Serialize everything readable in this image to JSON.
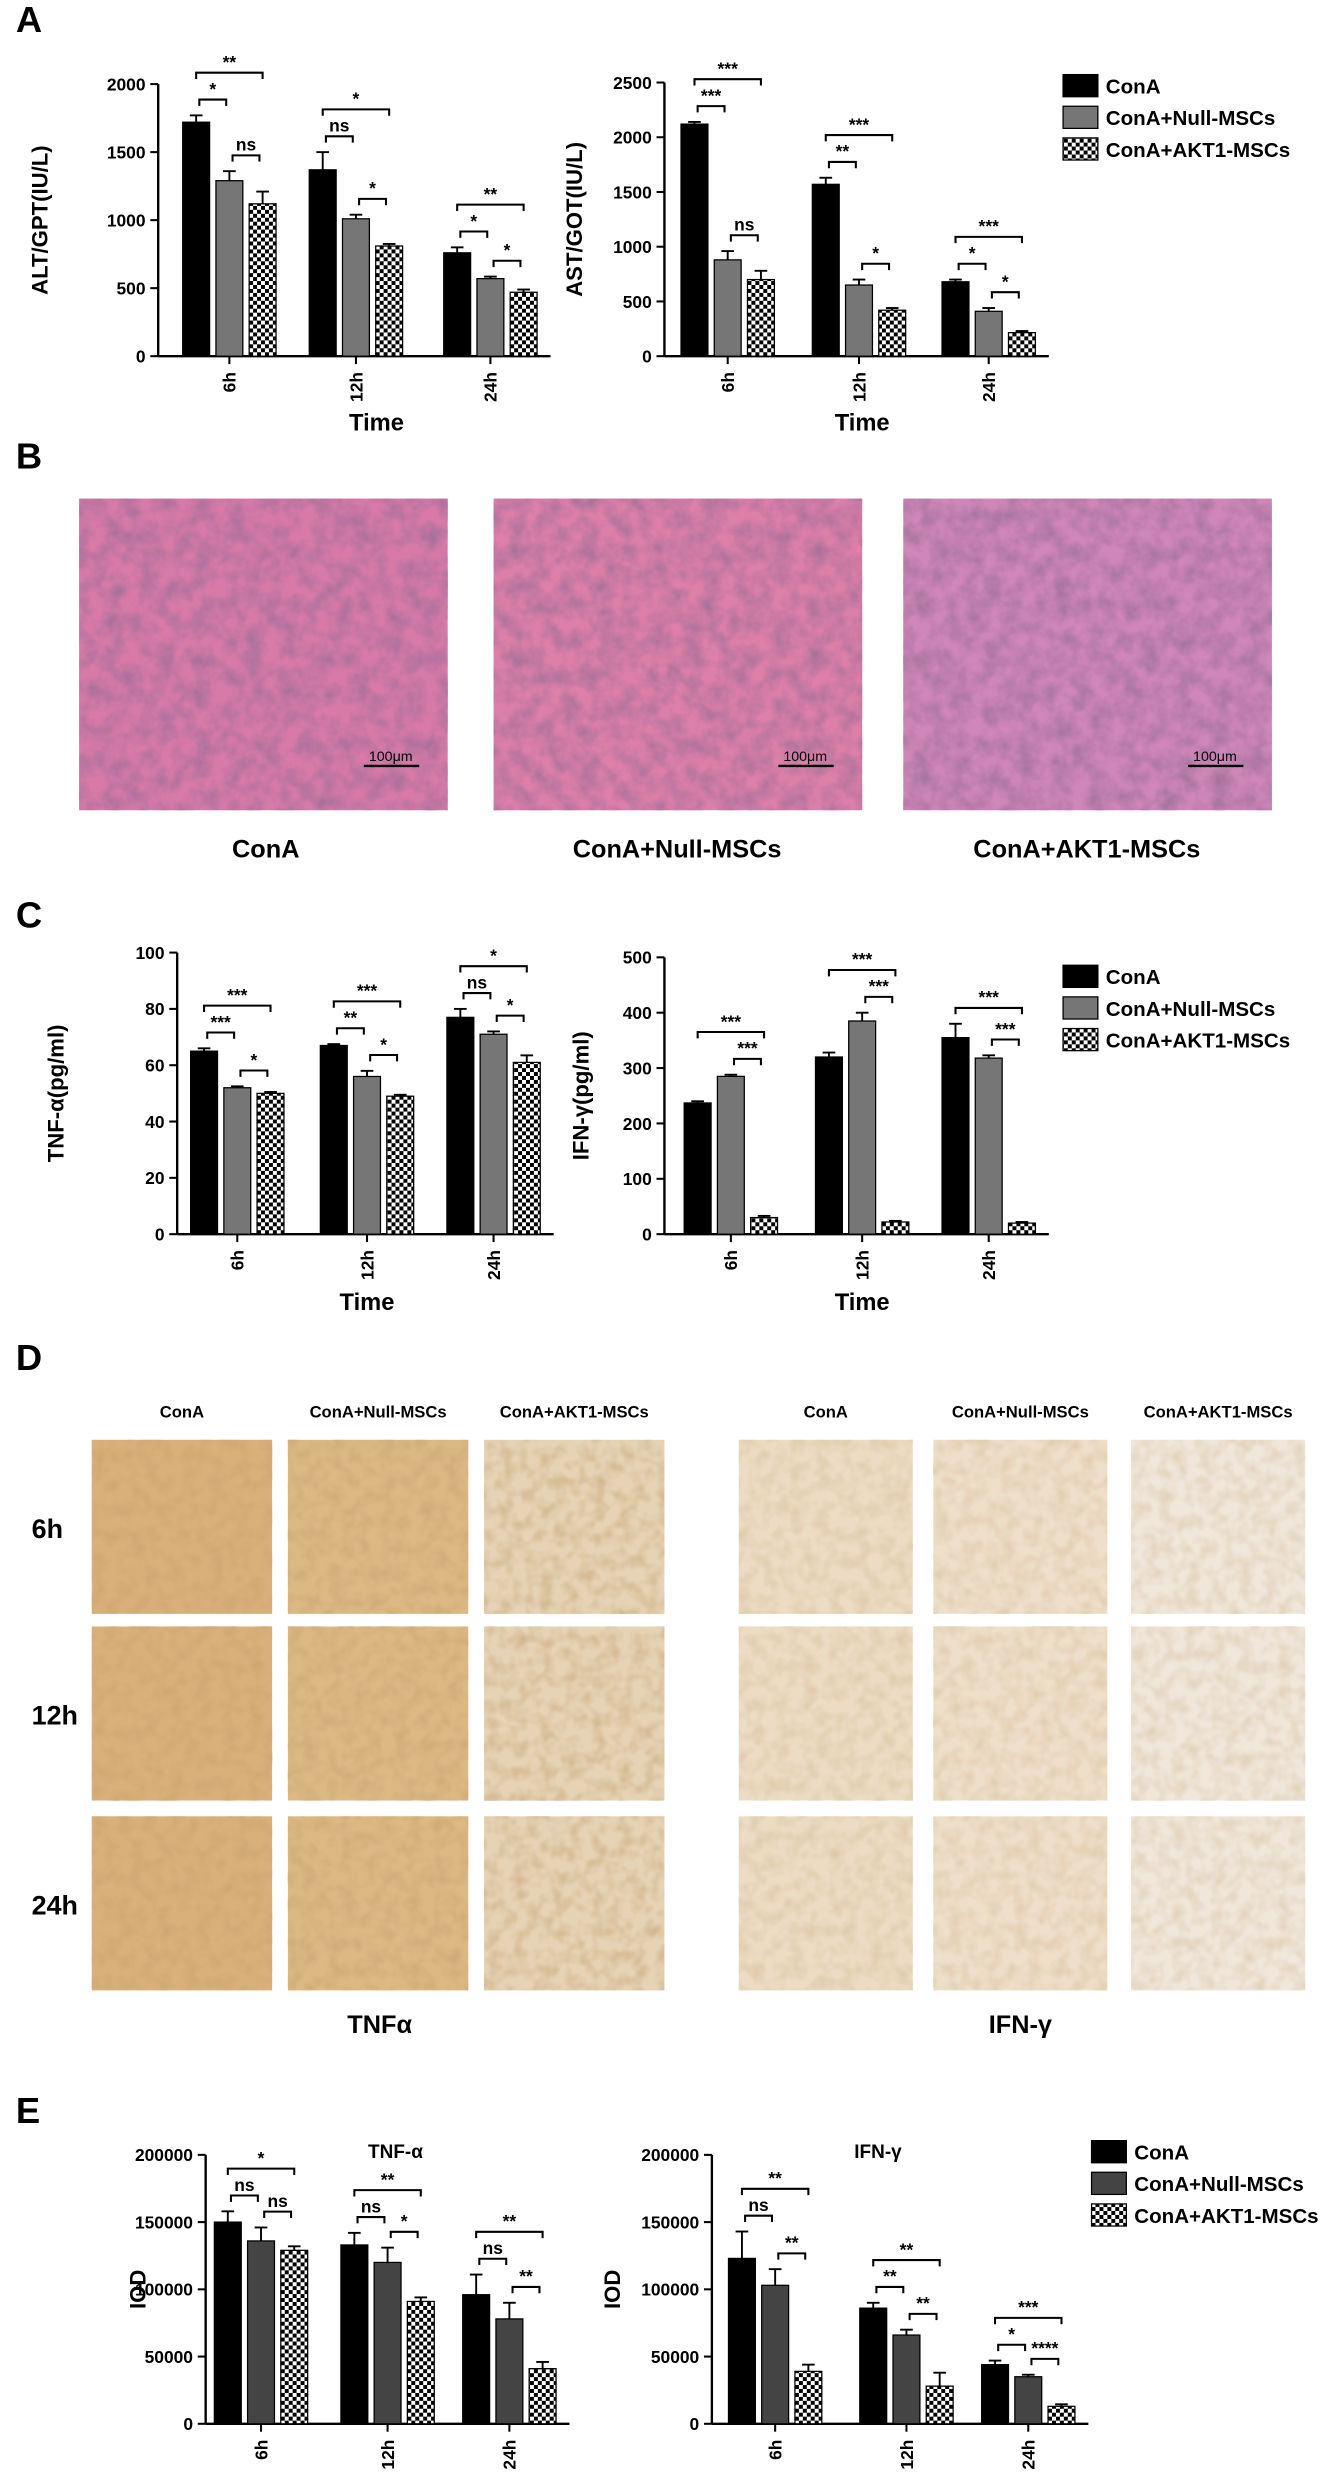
{
  "panels": {
    "letters": [
      "A",
      "B",
      "C",
      "D",
      "E"
    ],
    "histology": {
      "labels": [
        "ConA",
        "ConA+Null-MSCs",
        "ConA+AKT1-MSCs"
      ],
      "scale_bar": "100μm"
    },
    "ihc": {
      "columns": [
        "ConA",
        "ConA+Null-MSCs",
        "ConA+AKT1-MSCs"
      ],
      "rows": [
        "6h",
        "12h",
        "24h"
      ],
      "stains": [
        "TNFα",
        "IFN-γ"
      ]
    }
  },
  "chart_data": [
    {
      "type": "bar",
      "ylabel": "ALT/GPT(IU/L)",
      "xlabel": "Time",
      "categories": [
        "6h",
        "12h",
        "24h"
      ],
      "ylim": [
        0,
        2000
      ],
      "yticks": [
        0,
        500,
        1000,
        1500,
        2000
      ],
      "series": [
        {
          "color": "#000000",
          "values": [
            1720,
            1370,
            760
          ],
          "errors": [
            50,
            130,
            40
          ]
        },
        {
          "color": "#767676",
          "values": [
            1290,
            1010,
            570
          ],
          "errors": [
            70,
            30,
            15
          ]
        },
        {
          "color": "#ffffff",
          "pattern": "checker",
          "values": [
            1120,
            810,
            470
          ],
          "errors": [
            90,
            15,
            20
          ]
        }
      ],
      "significance": [
        {
          "label": "*",
          "category": 0,
          "pair": [
            0,
            1
          ]
        },
        {
          "label": "ns",
          "category": 0,
          "pair": [
            1,
            2
          ]
        },
        {
          "label": "**",
          "category": 0,
          "pair": [
            0,
            2
          ]
        },
        {
          "label": "ns",
          "category": 1,
          "pair": [
            0,
            1
          ]
        },
        {
          "label": "*",
          "category": 1,
          "pair": [
            1,
            2
          ]
        },
        {
          "label": "*",
          "category": 1,
          "pair": [
            0,
            2
          ]
        },
        {
          "label": "*",
          "category": 2,
          "pair": [
            0,
            1
          ]
        },
        {
          "label": "*",
          "category": 2,
          "pair": [
            1,
            2
          ]
        },
        {
          "label": "**",
          "category": 2,
          "pair": [
            0,
            2
          ]
        }
      ]
    },
    {
      "type": "bar",
      "ylabel": "AST/GOT(IU/L)",
      "xlabel": "Time",
      "categories": [
        "6h",
        "12h",
        "24h"
      ],
      "ylim": [
        0,
        2500
      ],
      "yticks": [
        0,
        500,
        1000,
        1500,
        2000,
        2500
      ],
      "legend": "right",
      "series": [
        {
          "name": "ConA",
          "color": "#000000",
          "values": [
            2120,
            1570,
            680
          ],
          "errors": [
            20,
            60,
            20
          ]
        },
        {
          "name": "ConA+Null-MSCs",
          "color": "#767676",
          "values": [
            880,
            650,
            410
          ],
          "errors": [
            80,
            50,
            30
          ]
        },
        {
          "name": "ConA+AKT1-MSCs",
          "color": "#ffffff",
          "pattern": "checker",
          "values": [
            700,
            420,
            215
          ],
          "errors": [
            80,
            20,
            15
          ]
        }
      ],
      "significance": [
        {
          "label": "***",
          "category": 0,
          "pair": [
            0,
            1
          ]
        },
        {
          "label": "ns",
          "category": 0,
          "pair": [
            1,
            2
          ]
        },
        {
          "label": "***",
          "category": 0,
          "pair": [
            0,
            2
          ]
        },
        {
          "label": "**",
          "category": 1,
          "pair": [
            0,
            1
          ]
        },
        {
          "label": "*",
          "category": 1,
          "pair": [
            1,
            2
          ]
        },
        {
          "label": "***",
          "category": 1,
          "pair": [
            0,
            2
          ]
        },
        {
          "label": "*",
          "category": 2,
          "pair": [
            0,
            1
          ]
        },
        {
          "label": "*",
          "category": 2,
          "pair": [
            1,
            2
          ]
        },
        {
          "label": "***",
          "category": 2,
          "pair": [
            0,
            2
          ]
        }
      ]
    },
    {
      "type": "bar",
      "ylabel": "TNF-α(pg/ml)",
      "xlabel": "Time",
      "categories": [
        "6h",
        "12h",
        "24h"
      ],
      "ylim": [
        0,
        100
      ],
      "yticks": [
        0,
        20,
        40,
        60,
        80,
        100
      ],
      "series": [
        {
          "color": "#000000",
          "values": [
            65,
            67,
            77
          ],
          "errors": [
            1,
            0.5,
            3
          ]
        },
        {
          "color": "#767676",
          "values": [
            52,
            56,
            71
          ],
          "errors": [
            0.5,
            2,
            1
          ]
        },
        {
          "color": "#ffffff",
          "pattern": "checker",
          "values": [
            50,
            49,
            61
          ],
          "errors": [
            0.5,
            0.5,
            2.5
          ]
        }
      ],
      "significance": [
        {
          "label": "***",
          "category": 0,
          "pair": [
            0,
            1
          ]
        },
        {
          "label": "*",
          "category": 0,
          "pair": [
            1,
            2
          ]
        },
        {
          "label": "***",
          "category": 0,
          "pair": [
            0,
            2
          ]
        },
        {
          "label": "**",
          "category": 1,
          "pair": [
            0,
            1
          ]
        },
        {
          "label": "*",
          "category": 1,
          "pair": [
            1,
            2
          ]
        },
        {
          "label": "***",
          "category": 1,
          "pair": [
            0,
            2
          ]
        },
        {
          "label": "ns",
          "category": 2,
          "pair": [
            0,
            1
          ]
        },
        {
          "label": "*",
          "category": 2,
          "pair": [
            1,
            2
          ]
        },
        {
          "label": "*",
          "category": 2,
          "pair": [
            0,
            2
          ]
        }
      ]
    },
    {
      "type": "bar",
      "ylabel": "IFN-γ(pg/ml)",
      "xlabel": "Time",
      "categories": [
        "6h",
        "12h",
        "24h"
      ],
      "ylim": [
        0,
        500
      ],
      "yticks": [
        0,
        100,
        200,
        300,
        400,
        500
      ],
      "legend": "right",
      "series": [
        {
          "name": "ConA",
          "color": "#000000",
          "values": [
            237,
            320,
            355
          ],
          "errors": [
            3,
            8,
            25
          ]
        },
        {
          "name": "ConA+Null-MSCs",
          "color": "#767676",
          "values": [
            285,
            385,
            318
          ],
          "errors": [
            3,
            15,
            5
          ]
        },
        {
          "name": "ConA+AKT1-MSCs",
          "color": "#ffffff",
          "pattern": "checker",
          "values": [
            30,
            22,
            20
          ],
          "errors": [
            3,
            2,
            2
          ]
        }
      ],
      "significance": [
        {
          "label": "***",
          "category": 0,
          "pair": [
            1,
            2
          ]
        },
        {
          "label": "***",
          "category": 0,
          "pair": [
            0,
            2
          ]
        },
        {
          "label": "***",
          "category": 1,
          "pair": [
            1,
            2
          ]
        },
        {
          "label": "***",
          "category": 1,
          "pair": [
            0,
            2
          ]
        },
        {
          "label": "***",
          "category": 2,
          "pair": [
            1,
            2
          ]
        },
        {
          "label": "***",
          "category": 2,
          "pair": [
            0,
            2
          ]
        }
      ]
    },
    {
      "type": "bar",
      "title": "TNF-α",
      "ylabel": "IOD",
      "categories": [
        "6h",
        "12h",
        "24h"
      ],
      "ylim": [
        0,
        200000
      ],
      "yticks": [
        0,
        50000,
        100000,
        150000,
        200000
      ],
      "series": [
        {
          "color": "#000000",
          "values": [
            150000,
            133000,
            96000
          ],
          "errors": [
            8000,
            9000,
            15000
          ]
        },
        {
          "color": "#444444",
          "values": [
            136000,
            120000,
            78000
          ],
          "errors": [
            10000,
            11000,
            12000
          ]
        },
        {
          "color": "#ffffff",
          "pattern": "checker",
          "values": [
            129000,
            91000,
            41000
          ],
          "errors": [
            3000,
            3000,
            5000
          ]
        }
      ],
      "significance": [
        {
          "label": "ns",
          "category": 0,
          "pair": [
            0,
            1
          ]
        },
        {
          "label": "ns",
          "category": 0,
          "pair": [
            1,
            2
          ]
        },
        {
          "label": "*",
          "category": 0,
          "pair": [
            0,
            2
          ]
        },
        {
          "label": "ns",
          "category": 1,
          "pair": [
            0,
            1
          ]
        },
        {
          "label": "*",
          "category": 1,
          "pair": [
            1,
            2
          ]
        },
        {
          "label": "**",
          "category": 1,
          "pair": [
            0,
            2
          ]
        },
        {
          "label": "ns",
          "category": 2,
          "pair": [
            0,
            1
          ]
        },
        {
          "label": "**",
          "category": 2,
          "pair": [
            1,
            2
          ]
        },
        {
          "label": "**",
          "category": 2,
          "pair": [
            0,
            2
          ]
        }
      ]
    },
    {
      "type": "bar",
      "title": "IFN-γ",
      "ylabel": "IOD",
      "categories": [
        "6h",
        "12h",
        "24h"
      ],
      "ylim": [
        0,
        200000
      ],
      "yticks": [
        0,
        50000,
        100000,
        150000,
        200000
      ],
      "legend": "right",
      "series": [
        {
          "name": "ConA",
          "color": "#000000",
          "values": [
            123000,
            86000,
            44000
          ],
          "errors": [
            20000,
            4000,
            3000
          ]
        },
        {
          "name": "ConA+Null-MSCs",
          "color": "#444444",
          "values": [
            103000,
            66000,
            35000
          ],
          "errors": [
            12000,
            4000,
            1500
          ]
        },
        {
          "name": "ConA+AKT1-MSCs",
          "color": "#ffffff",
          "pattern": "checker",
          "values": [
            39000,
            28000,
            13000
          ],
          "errors": [
            5000,
            10000,
            1500
          ]
        }
      ],
      "significance": [
        {
          "label": "ns",
          "category": 0,
          "pair": [
            0,
            1
          ]
        },
        {
          "label": "**",
          "category": 0,
          "pair": [
            1,
            2
          ]
        },
        {
          "label": "**",
          "category": 0,
          "pair": [
            0,
            2
          ]
        },
        {
          "label": "**",
          "category": 1,
          "pair": [
            0,
            1
          ]
        },
        {
          "label": "**",
          "category": 1,
          "pair": [
            1,
            2
          ]
        },
        {
          "label": "**",
          "category": 1,
          "pair": [
            0,
            2
          ]
        },
        {
          "label": "*",
          "category": 2,
          "pair": [
            0,
            1
          ]
        },
        {
          "label": "****",
          "category": 2,
          "pair": [
            1,
            2
          ]
        },
        {
          "label": "***",
          "category": 2,
          "pair": [
            0,
            2
          ]
        }
      ]
    }
  ]
}
